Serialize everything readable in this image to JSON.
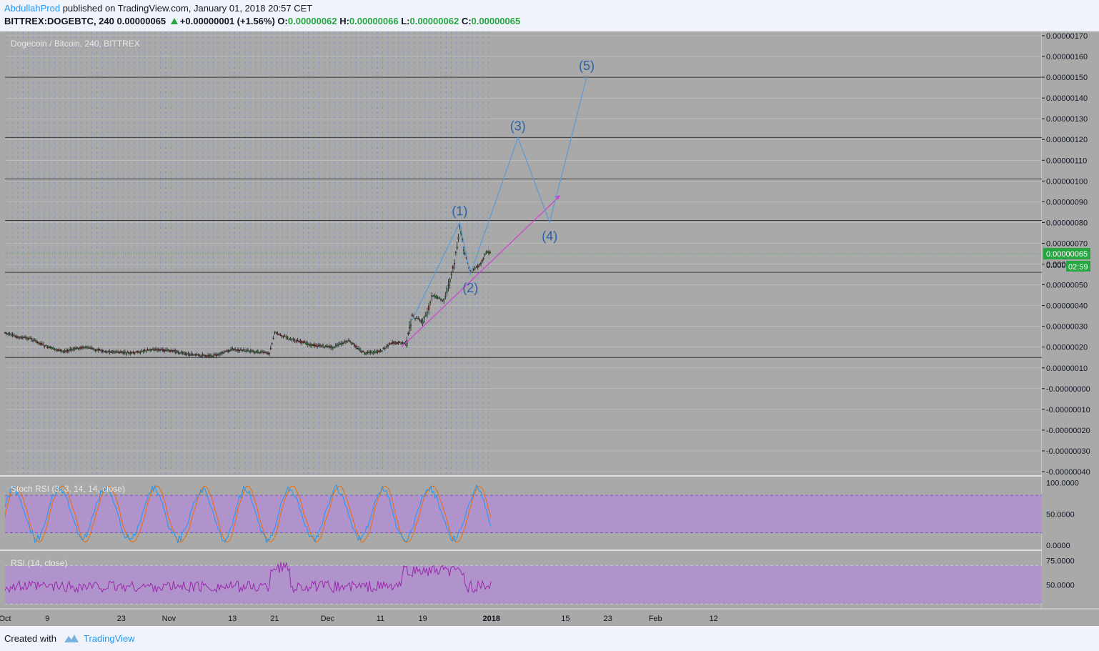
{
  "header": {
    "author": "AbdullahProd",
    "published_text": "published on TradingView.com, January 01, 2018 20:57 CET",
    "symbol": "BITTREX:DOGEBTC, 240",
    "last_price": "0.00000065",
    "change": "+0.00000001 (+1.56%)",
    "open_label": "O:",
    "open": "0.00000062",
    "high_label": "H:",
    "high": "0.00000066",
    "low_label": "L:",
    "low": "0.00000062",
    "close_label": "C:",
    "close": "0.00000065"
  },
  "footer": {
    "created_with": "Created with",
    "brand": "TradingView"
  },
  "colors": {
    "background": "#a9a9a9",
    "grid": "#c8c8c8",
    "forecast_line": "#5b9bd5",
    "trendline": "#d43fd4",
    "price_label": "#26a640",
    "rsi_band": "#b28fd0",
    "rsi_line": "#9c27b0",
    "stoch_k": "#2196f3",
    "stoch_d": "#ef6c00"
  },
  "chart_data": [
    {
      "type": "candlestick",
      "title": "Dogecoin / Bitcoin, 240, BITTREX",
      "ylim": [
        -4e-07,
        1.7e-06
      ],
      "y_ticks": [
        "0.00000170",
        "0.00000160",
        "0.00000150",
        "0.00000140",
        "0.00000130",
        "0.00000120",
        "0.00000110",
        "0.00000100",
        "0.00000090",
        "0.00000080",
        "0.00000070",
        "0.00000060",
        "0.00000050",
        "0.00000040",
        "0.00000030",
        "0.00000020",
        "0.00000010",
        "-0.00000000",
        "-0.00000010",
        "-0.00000020",
        "-0.00000030",
        "-0.00000040"
      ],
      "x_ticks": [
        "Oct",
        "9",
        "23",
        "Nov",
        "13",
        "21",
        "Dec",
        "11",
        "19",
        "2018",
        "15",
        "23",
        "Feb",
        "12"
      ],
      "price_path": [
        [
          "2017-10-01",
          2.7e-07
        ],
        [
          "2017-10-03",
          2.5e-07
        ],
        [
          "2017-10-06",
          2.4e-07
        ],
        [
          "2017-10-09",
          2e-07
        ],
        [
          "2017-10-12",
          1.8e-07
        ],
        [
          "2017-10-16",
          2e-07
        ],
        [
          "2017-10-20",
          1.8e-07
        ],
        [
          "2017-10-25",
          1.7e-07
        ],
        [
          "2017-10-29",
          1.9e-07
        ],
        [
          "2017-11-02",
          1.8e-07
        ],
        [
          "2017-11-06",
          1.6e-07
        ],
        [
          "2017-11-10",
          1.6e-07
        ],
        [
          "2017-11-13",
          1.9e-07
        ],
        [
          "2017-11-17",
          1.8e-07
        ],
        [
          "2017-11-20",
          1.7e-07
        ],
        [
          "2017-11-21",
          2.7e-07
        ],
        [
          "2017-11-24",
          2.4e-07
        ],
        [
          "2017-11-28",
          2.1e-07
        ],
        [
          "2017-12-02",
          2e-07
        ],
        [
          "2017-12-05",
          2.3e-07
        ],
        [
          "2017-12-08",
          1.7e-07
        ],
        [
          "2017-12-11",
          1.8e-07
        ],
        [
          "2017-12-13",
          2.2e-07
        ],
        [
          "2017-12-16",
          2.2e-07
        ],
        [
          "2017-12-17",
          3.5e-07
        ],
        [
          "2017-12-19",
          3.2e-07
        ],
        [
          "2017-12-21",
          4.5e-07
        ],
        [
          "2017-12-23",
          4.2e-07
        ],
        [
          "2017-12-25",
          6e-07
        ],
        [
          "2017-12-26",
          7.8e-07
        ],
        [
          "2017-12-27",
          6.5e-07
        ],
        [
          "2017-12-28",
          5.6e-07
        ],
        [
          "2017-12-30",
          6e-07
        ],
        [
          "2017-12-31",
          6.6e-07
        ],
        [
          "2018-01-01",
          6.5e-07
        ]
      ],
      "horizontal_levels": [
        1.5e-06,
        1.21e-06,
        1.01e-06,
        8.1e-07,
        5.6e-07,
        1.5e-07
      ],
      "current_price": "0.00000065",
      "current_price_value": 6.5e-07,
      "partial_label": "0.000",
      "countdown": "02:59",
      "wave_projection": [
        {
          "label": "(1)",
          "date": "2017-12-26",
          "price": 8e-07
        },
        {
          "label": "(2)",
          "date": "2017-12-28",
          "price": 5.5e-07
        },
        {
          "label": "(3)",
          "date": "2018-01-06",
          "price": 1.21e-06
        },
        {
          "label": "(4)",
          "date": "2018-01-12",
          "price": 8e-07
        },
        {
          "label": "(5)",
          "date": "2018-01-19",
          "price": 1.5e-06
        }
      ],
      "trendline": {
        "start": [
          "2017-12-15",
          2e-07
        ],
        "end": [
          "2018-01-14",
          9.3e-07
        ]
      }
    },
    {
      "type": "line",
      "title": "Stoch RSI (3, 3, 14, 14, close)",
      "ylim": [
        -8,
        110
      ],
      "y_ticks": [
        "100.0000",
        "50.0000",
        "0.0000"
      ],
      "band": [
        20,
        80
      ]
    },
    {
      "type": "line",
      "title": "RSI (14, close)",
      "ylim": [
        25,
        85
      ],
      "y_ticks": [
        "75.0000",
        "50.0000"
      ],
      "band": [
        30,
        70
      ]
    }
  ]
}
